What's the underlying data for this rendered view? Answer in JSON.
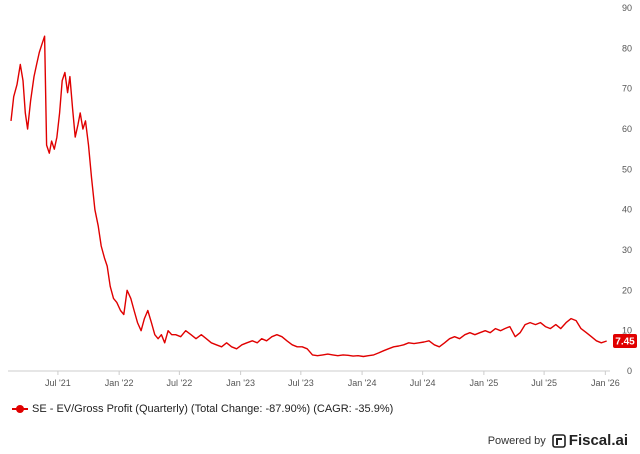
{
  "chart_data": {
    "type": "line",
    "x_axis": {
      "ticks": [
        "Jul '21",
        "Jan '22",
        "Jul '22",
        "Jan '23",
        "Jul '23",
        "Jan '24",
        "Jul '24",
        "Jan '25",
        "Jul '25",
        "Jan '26"
      ],
      "range": [
        "2021-02-01",
        "2026-01-15"
      ]
    },
    "y_axis": {
      "ticks": [
        0,
        10,
        20,
        30,
        40,
        50,
        60,
        70,
        80,
        90
      ],
      "range": [
        0,
        90
      ],
      "position": "right"
    },
    "grid": false,
    "series": [
      {
        "name": "SE - EV/Gross Profit (Quarterly)",
        "color": "#e00000",
        "last_value_label": "7.45",
        "points": [
          [
            "2021-02-10",
            62
          ],
          [
            "2021-02-18",
            68
          ],
          [
            "2021-02-28",
            71
          ],
          [
            "2021-03-10",
            76
          ],
          [
            "2021-03-18",
            72
          ],
          [
            "2021-03-25",
            64
          ],
          [
            "2021-04-01",
            60
          ],
          [
            "2021-04-10",
            67
          ],
          [
            "2021-04-20",
            73
          ],
          [
            "2021-04-28",
            76
          ],
          [
            "2021-05-06",
            79
          ],
          [
            "2021-05-14",
            81
          ],
          [
            "2021-05-22",
            83
          ],
          [
            "2021-05-28",
            56
          ],
          [
            "2021-06-05",
            54
          ],
          [
            "2021-06-12",
            57
          ],
          [
            "2021-06-20",
            55
          ],
          [
            "2021-06-28",
            58
          ],
          [
            "2021-07-06",
            64
          ],
          [
            "2021-07-14",
            72
          ],
          [
            "2021-07-22",
            74
          ],
          [
            "2021-07-30",
            69
          ],
          [
            "2021-08-06",
            73
          ],
          [
            "2021-08-14",
            65
          ],
          [
            "2021-08-22",
            58
          ],
          [
            "2021-08-30",
            61
          ],
          [
            "2021-09-06",
            64
          ],
          [
            "2021-09-14",
            60
          ],
          [
            "2021-09-22",
            62
          ],
          [
            "2021-10-01",
            56
          ],
          [
            "2021-10-10",
            48
          ],
          [
            "2021-10-20",
            40
          ],
          [
            "2021-10-30",
            36
          ],
          [
            "2021-11-08",
            31
          ],
          [
            "2021-11-18",
            28
          ],
          [
            "2021-11-26",
            26
          ],
          [
            "2021-12-05",
            21
          ],
          [
            "2021-12-15",
            18
          ],
          [
            "2021-12-25",
            17
          ],
          [
            "2022-01-05",
            15
          ],
          [
            "2022-01-15",
            14
          ],
          [
            "2022-01-25",
            20
          ],
          [
            "2022-02-05",
            18
          ],
          [
            "2022-02-15",
            15
          ],
          [
            "2022-02-25",
            12
          ],
          [
            "2022-03-08",
            10
          ],
          [
            "2022-03-18",
            13
          ],
          [
            "2022-03-28",
            15
          ],
          [
            "2022-04-08",
            12
          ],
          [
            "2022-04-18",
            9
          ],
          [
            "2022-04-28",
            8
          ],
          [
            "2022-05-08",
            9
          ],
          [
            "2022-05-18",
            7
          ],
          [
            "2022-05-28",
            10
          ],
          [
            "2022-06-08",
            9
          ],
          [
            "2022-06-20",
            9
          ],
          [
            "2022-07-05",
            8.5
          ],
          [
            "2022-07-20",
            10
          ],
          [
            "2022-08-05",
            9
          ],
          [
            "2022-08-20",
            8
          ],
          [
            "2022-09-05",
            9
          ],
          [
            "2022-09-20",
            8
          ],
          [
            "2022-10-05",
            7
          ],
          [
            "2022-10-20",
            6.5
          ],
          [
            "2022-11-05",
            6
          ],
          [
            "2022-11-20",
            7
          ],
          [
            "2022-12-05",
            6
          ],
          [
            "2022-12-20",
            5.5
          ],
          [
            "2023-01-05",
            6.5
          ],
          [
            "2023-01-20",
            7
          ],
          [
            "2023-02-05",
            7.5
          ],
          [
            "2023-02-20",
            7
          ],
          [
            "2023-03-05",
            8
          ],
          [
            "2023-03-20",
            7.5
          ],
          [
            "2023-04-05",
            8.5
          ],
          [
            "2023-04-20",
            9
          ],
          [
            "2023-05-05",
            8.5
          ],
          [
            "2023-05-20",
            7.5
          ],
          [
            "2023-06-05",
            6.5
          ],
          [
            "2023-06-20",
            6
          ],
          [
            "2023-07-05",
            6
          ],
          [
            "2023-07-20",
            5.5
          ],
          [
            "2023-08-05",
            4
          ],
          [
            "2023-08-20",
            3.8
          ],
          [
            "2023-09-05",
            4
          ],
          [
            "2023-09-20",
            4.2
          ],
          [
            "2023-10-05",
            4
          ],
          [
            "2023-10-20",
            3.8
          ],
          [
            "2023-11-05",
            4
          ],
          [
            "2023-11-20",
            3.9
          ],
          [
            "2023-12-05",
            3.7
          ],
          [
            "2023-12-20",
            3.8
          ],
          [
            "2024-01-05",
            3.6
          ],
          [
            "2024-01-20",
            3.8
          ],
          [
            "2024-02-05",
            4
          ],
          [
            "2024-02-20",
            4.5
          ],
          [
            "2024-03-05",
            5
          ],
          [
            "2024-03-20",
            5.5
          ],
          [
            "2024-04-05",
            6
          ],
          [
            "2024-04-20",
            6.2
          ],
          [
            "2024-05-05",
            6.5
          ],
          [
            "2024-05-20",
            7
          ],
          [
            "2024-06-05",
            6.8
          ],
          [
            "2024-06-20",
            7
          ],
          [
            "2024-07-05",
            7.2
          ],
          [
            "2024-07-20",
            7.5
          ],
          [
            "2024-08-05",
            6.5
          ],
          [
            "2024-08-20",
            6
          ],
          [
            "2024-09-05",
            7
          ],
          [
            "2024-09-20",
            8
          ],
          [
            "2024-10-05",
            8.5
          ],
          [
            "2024-10-20",
            8
          ],
          [
            "2024-11-05",
            9
          ],
          [
            "2024-11-20",
            9.5
          ],
          [
            "2024-12-05",
            9
          ],
          [
            "2024-12-20",
            9.5
          ],
          [
            "2025-01-05",
            10
          ],
          [
            "2025-01-20",
            9.5
          ],
          [
            "2025-02-05",
            10.5
          ],
          [
            "2025-02-20",
            10
          ],
          [
            "2025-03-05",
            10.5
          ],
          [
            "2025-03-20",
            11
          ],
          [
            "2025-04-05",
            8.5
          ],
          [
            "2025-04-20",
            9.5
          ],
          [
            "2025-05-05",
            11.5
          ],
          [
            "2025-05-20",
            12
          ],
          [
            "2025-06-05",
            11.5
          ],
          [
            "2025-06-20",
            12
          ],
          [
            "2025-07-05",
            11
          ],
          [
            "2025-07-20",
            10.5
          ],
          [
            "2025-08-05",
            11.5
          ],
          [
            "2025-08-20",
            10.5
          ],
          [
            "2025-09-05",
            12
          ],
          [
            "2025-09-20",
            13
          ],
          [
            "2025-10-05",
            12.5
          ],
          [
            "2025-10-20",
            10.5
          ],
          [
            "2025-11-05",
            9.5
          ],
          [
            "2025-11-20",
            8.5
          ],
          [
            "2025-12-05",
            7.5
          ],
          [
            "2025-12-20",
            7
          ],
          [
            "2026-01-05",
            7.45
          ]
        ]
      }
    ]
  },
  "legend": {
    "position": "bottom-left",
    "text": "SE - EV/Gross Profit (Quarterly) (Total Change: -87.90%) (CAGR: -35.9%)"
  },
  "branding": {
    "powered_by": "Powered by",
    "name": "Fiscal.ai",
    "icon": "fiscal-logo-icon"
  }
}
